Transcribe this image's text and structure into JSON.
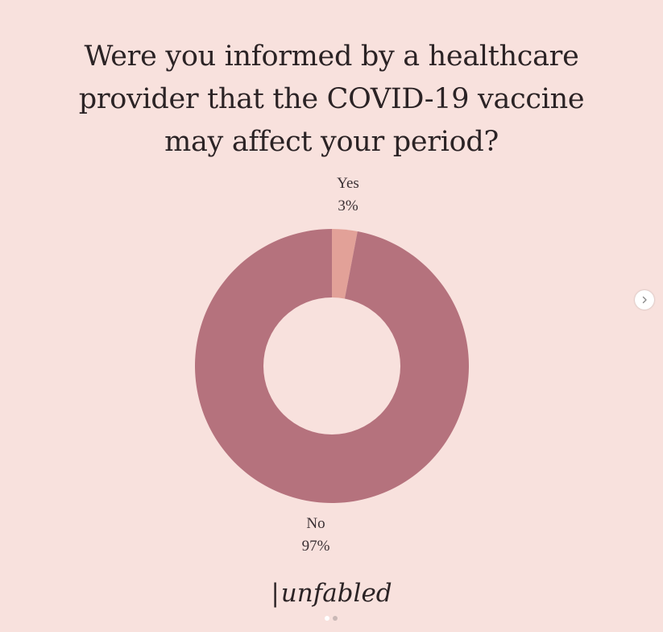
{
  "chart_data": {
    "type": "pie",
    "title": "Were you informed by a healthcare provider that the COVID-19 vaccine may affect your period?",
    "categories": [
      "Yes",
      "No"
    ],
    "values": [
      3,
      97
    ],
    "value_labels": [
      "3%",
      "97%"
    ],
    "colors": [
      "#e2a198",
      "#b5727d"
    ],
    "hole": true,
    "legend": "none"
  },
  "branding": {
    "logo_text": "unfabled"
  },
  "colors": {
    "background": "#f8e1dd",
    "hole": "#f8e1dd"
  },
  "carousel": {
    "next_icon": "chevron-right-icon",
    "slide_count": 2,
    "active_index": 0
  }
}
